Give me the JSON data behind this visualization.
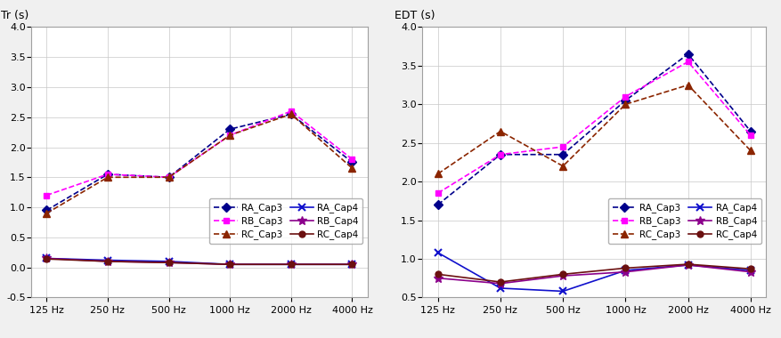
{
  "freqs": [
    "125 Hz",
    "250 Hz",
    "500 Hz",
    "1000 Hz",
    "2000 Hz",
    "4000 Hz"
  ],
  "freq_x": [
    0,
    1,
    2,
    3,
    4,
    5
  ],
  "tr_RA_Cap3": [
    0.95,
    1.55,
    1.5,
    2.3,
    2.55,
    1.75
  ],
  "tr_RB_Cap3": [
    1.2,
    1.55,
    1.5,
    2.2,
    2.6,
    1.8
  ],
  "tr_RC_Cap3": [
    0.9,
    1.5,
    1.5,
    2.2,
    2.55,
    1.65
  ],
  "tr_RA_Cap4": [
    0.15,
    0.12,
    0.1,
    0.05,
    0.05,
    0.05
  ],
  "tr_RB_Cap4": [
    0.15,
    0.1,
    0.08,
    0.05,
    0.05,
    0.05
  ],
  "tr_RC_Cap4": [
    0.14,
    0.1,
    0.08,
    0.05,
    0.05,
    0.05
  ],
  "edt_RA_Cap3": [
    1.7,
    2.35,
    2.35,
    3.05,
    3.65,
    2.65
  ],
  "edt_RB_Cap3": [
    1.85,
    2.35,
    2.45,
    3.1,
    3.55,
    2.6
  ],
  "edt_RC_Cap3": [
    2.1,
    2.65,
    2.2,
    3.0,
    3.25,
    2.4
  ],
  "edt_RA_Cap4": [
    1.08,
    0.62,
    0.58,
    0.85,
    0.92,
    0.85
  ],
  "edt_RB_Cap4": [
    0.75,
    0.68,
    0.78,
    0.83,
    0.92,
    0.83
  ],
  "edt_RC_Cap4": [
    0.8,
    0.7,
    0.8,
    0.88,
    0.93,
    0.87
  ],
  "color_RA_Cap3": "#00008B",
  "color_RB_Cap3": "#FF00FF",
  "color_RC_Cap3": "#8B2500",
  "color_RA_Cap4": "#1010CC",
  "color_RB_Cap4": "#8B008B",
  "color_RC_Cap4": "#6B1010",
  "tr_ylabel": "Tr (s)",
  "edt_ylabel": "EDT (s)",
  "tr_ylim": [
    -0.5,
    4.0
  ],
  "tr_yticks": [
    -0.5,
    0.0,
    0.5,
    1.0,
    1.5,
    2.0,
    2.5,
    3.0,
    3.5,
    4.0
  ],
  "edt_ylim": [
    0.5,
    4.0
  ],
  "edt_yticks": [
    0.5,
    1.0,
    1.5,
    2.0,
    2.5,
    3.0,
    3.5,
    4.0
  ],
  "legend_labels_col1": [
    "RA_Cap3",
    "RC_Cap3",
    "RB_Cap4"
  ],
  "legend_labels_col2": [
    "RB_Cap3",
    "RA_Cap4",
    "RC_Cap4"
  ],
  "bg_color": "#F0F0F0",
  "plot_bg": "#FFFFFF",
  "grid_color": "#C8C8C8"
}
